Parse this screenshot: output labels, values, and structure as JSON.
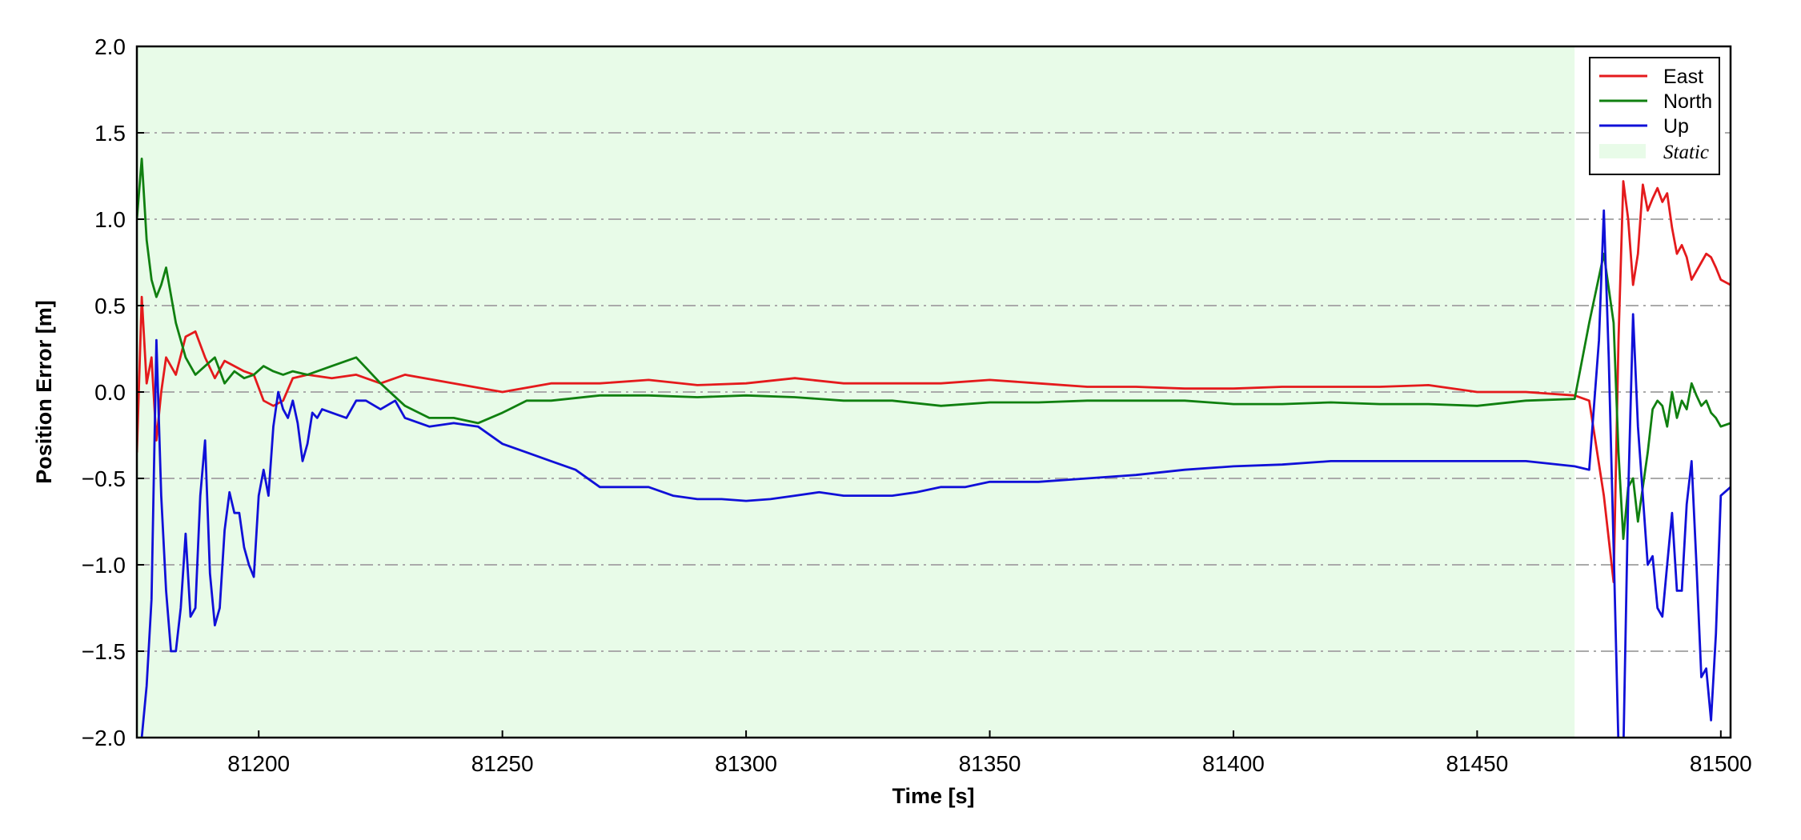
{
  "chart_data": {
    "type": "line",
    "title": "",
    "xlabel": "Time [s]",
    "ylabel": "Position Error [m]",
    "xlim": [
      81175,
      81502
    ],
    "ylim": [
      -2.0,
      2.0
    ],
    "x_ticks": [
      "81200",
      "81250",
      "81300",
      "81350",
      "81400",
      "81450",
      "81500"
    ],
    "y_ticks": [
      "−2.0",
      "−1.5",
      "−1.0",
      "−0.5",
      "0.0",
      "0.5",
      "1.0",
      "1.5",
      "2.0"
    ],
    "grid": "horizontal dash-dot",
    "legend_position": "top-right",
    "shaded_regions": [
      {
        "name": "Static",
        "x_start": 81175,
        "x_end": 81470,
        "color": "#e8fbe8"
      }
    ],
    "series": [
      {
        "name": "East",
        "color": "#e41a1c",
        "x": [
          81175,
          81176,
          81177,
          81178,
          81179,
          81180,
          81181,
          81183,
          81185,
          81187,
          81189,
          81191,
          81193,
          81195,
          81197,
          81199,
          81201,
          81203,
          81205,
          81207,
          81210,
          81215,
          81220,
          81225,
          81230,
          81240,
          81250,
          81260,
          81270,
          81280,
          81290,
          81300,
          81310,
          81320,
          81330,
          81340,
          81350,
          81360,
          81370,
          81380,
          81390,
          81400,
          81410,
          81420,
          81430,
          81440,
          81450,
          81460,
          81470,
          81473,
          81476,
          81478,
          81479,
          81480,
          81481,
          81482,
          81483,
          81484,
          81485,
          81486,
          81487,
          81488,
          81489,
          81490,
          81491,
          81492,
          81493,
          81494,
          81495,
          81496,
          81497,
          81498,
          81499,
          81500,
          81502
        ],
        "y": [
          -0.35,
          0.55,
          0.05,
          0.2,
          -0.28,
          0.0,
          0.2,
          0.1,
          0.32,
          0.35,
          0.2,
          0.08,
          0.18,
          0.15,
          0.12,
          0.1,
          -0.05,
          -0.08,
          -0.05,
          0.08,
          0.1,
          0.08,
          0.1,
          0.05,
          0.1,
          0.05,
          0.0,
          0.05,
          0.05,
          0.07,
          0.04,
          0.05,
          0.08,
          0.05,
          0.05,
          0.05,
          0.07,
          0.05,
          0.03,
          0.03,
          0.02,
          0.02,
          0.03,
          0.03,
          0.03,
          0.04,
          0.0,
          0.0,
          -0.02,
          -0.05,
          -0.6,
          -1.1,
          0.3,
          1.22,
          1.0,
          0.62,
          0.8,
          1.2,
          1.05,
          1.12,
          1.18,
          1.1,
          1.15,
          0.95,
          0.8,
          0.85,
          0.78,
          0.65,
          0.7,
          0.75,
          0.8,
          0.78,
          0.72,
          0.65,
          0.62
        ]
      },
      {
        "name": "North",
        "color": "#108010",
        "x": [
          81175,
          81176,
          81177,
          81178,
          81179,
          81180,
          81181,
          81183,
          81185,
          81187,
          81189,
          81191,
          81193,
          81195,
          81197,
          81199,
          81201,
          81203,
          81205,
          81207,
          81210,
          81215,
          81220,
          81225,
          81230,
          81235,
          81240,
          81245,
          81250,
          81255,
          81260,
          81270,
          81280,
          81290,
          81300,
          81310,
          81320,
          81330,
          81340,
          81350,
          81360,
          81370,
          81380,
          81390,
          81400,
          81410,
          81420,
          81430,
          81440,
          81450,
          81460,
          81470,
          81473,
          81476,
          81478,
          81479,
          81480,
          81481,
          81482,
          81483,
          81484,
          81485,
          81486,
          81487,
          81488,
          81489,
          81490,
          81491,
          81492,
          81493,
          81494,
          81495,
          81496,
          81497,
          81498,
          81499,
          81500,
          81502
        ],
        "y": [
          1.0,
          1.35,
          0.88,
          0.65,
          0.55,
          0.62,
          0.72,
          0.4,
          0.2,
          0.1,
          0.15,
          0.2,
          0.05,
          0.12,
          0.08,
          0.1,
          0.15,
          0.12,
          0.1,
          0.12,
          0.1,
          0.15,
          0.2,
          0.05,
          -0.08,
          -0.15,
          -0.15,
          -0.18,
          -0.12,
          -0.05,
          -0.05,
          -0.02,
          -0.02,
          -0.03,
          -0.02,
          -0.03,
          -0.05,
          -0.05,
          -0.08,
          -0.06,
          -0.06,
          -0.05,
          -0.05,
          -0.05,
          -0.07,
          -0.07,
          -0.06,
          -0.07,
          -0.07,
          -0.08,
          -0.05,
          -0.04,
          0.4,
          0.8,
          0.4,
          -0.35,
          -0.85,
          -0.55,
          -0.5,
          -0.75,
          -0.55,
          -0.35,
          -0.1,
          -0.05,
          -0.08,
          -0.2,
          0.0,
          -0.15,
          -0.05,
          -0.1,
          0.05,
          -0.02,
          -0.08,
          -0.05,
          -0.12,
          -0.15,
          -0.2,
          -0.18
        ]
      },
      {
        "name": "Up",
        "color": "#1010d8",
        "x": [
          81175,
          81176,
          81177,
          81178,
          81179,
          81180,
          81181,
          81182,
          81183,
          81184,
          81185,
          81186,
          81187,
          81188,
          81189,
          81190,
          81191,
          81192,
          81193,
          81194,
          81195,
          81196,
          81197,
          81198,
          81199,
          81200,
          81201,
          81202,
          81203,
          81204,
          81205,
          81206,
          81207,
          81208,
          81209,
          81210,
          81211,
          81212,
          81213,
          81215,
          81218,
          81220,
          81222,
          81225,
          81228,
          81230,
          81235,
          81240,
          81245,
          81250,
          81255,
          81260,
          81265,
          81270,
          81275,
          81280,
          81285,
          81290,
          81295,
          81300,
          81305,
          81310,
          81315,
          81320,
          81325,
          81330,
          81335,
          81340,
          81345,
          81350,
          81360,
          81370,
          81380,
          81390,
          81400,
          81410,
          81420,
          81430,
          81440,
          81450,
          81460,
          81470,
          81473,
          81475,
          81476,
          81477,
          81478,
          81479,
          81480,
          81481,
          81482,
          81483,
          81484,
          81485,
          81486,
          81487,
          81488,
          81489,
          81490,
          81491,
          81492,
          81493,
          81494,
          81495,
          81496,
          81497,
          81498,
          81499,
          81500,
          81502
        ],
        "y": [
          -2.2,
          -2.0,
          -1.7,
          -1.2,
          0.3,
          -0.6,
          -1.15,
          -1.5,
          -1.5,
          -1.25,
          -0.82,
          -1.3,
          -1.25,
          -0.6,
          -0.28,
          -1.05,
          -1.35,
          -1.25,
          -0.8,
          -0.58,
          -0.7,
          -0.7,
          -0.9,
          -1.0,
          -1.07,
          -0.6,
          -0.45,
          -0.6,
          -0.2,
          0.0,
          -0.1,
          -0.15,
          -0.05,
          -0.18,
          -0.4,
          -0.3,
          -0.12,
          -0.15,
          -0.1,
          -0.12,
          -0.15,
          -0.05,
          -0.05,
          -0.1,
          -0.05,
          -0.15,
          -0.2,
          -0.18,
          -0.2,
          -0.3,
          -0.35,
          -0.4,
          -0.45,
          -0.55,
          -0.55,
          -0.55,
          -0.6,
          -0.62,
          -0.62,
          -0.63,
          -0.62,
          -0.6,
          -0.58,
          -0.6,
          -0.6,
          -0.6,
          -0.58,
          -0.55,
          -0.55,
          -0.52,
          -0.52,
          -0.5,
          -0.48,
          -0.45,
          -0.43,
          -0.42,
          -0.4,
          -0.4,
          -0.4,
          -0.4,
          -0.4,
          -0.43,
          -0.45,
          0.3,
          1.05,
          0.2,
          -0.9,
          -2.05,
          -2.1,
          -0.6,
          0.45,
          -0.2,
          -0.6,
          -1.0,
          -0.95,
          -1.25,
          -1.3,
          -1.0,
          -0.7,
          -1.15,
          -1.15,
          -0.65,
          -0.4,
          -1.0,
          -1.65,
          -1.6,
          -1.9,
          -1.4,
          -0.6,
          -0.55
        ]
      }
    ]
  }
}
